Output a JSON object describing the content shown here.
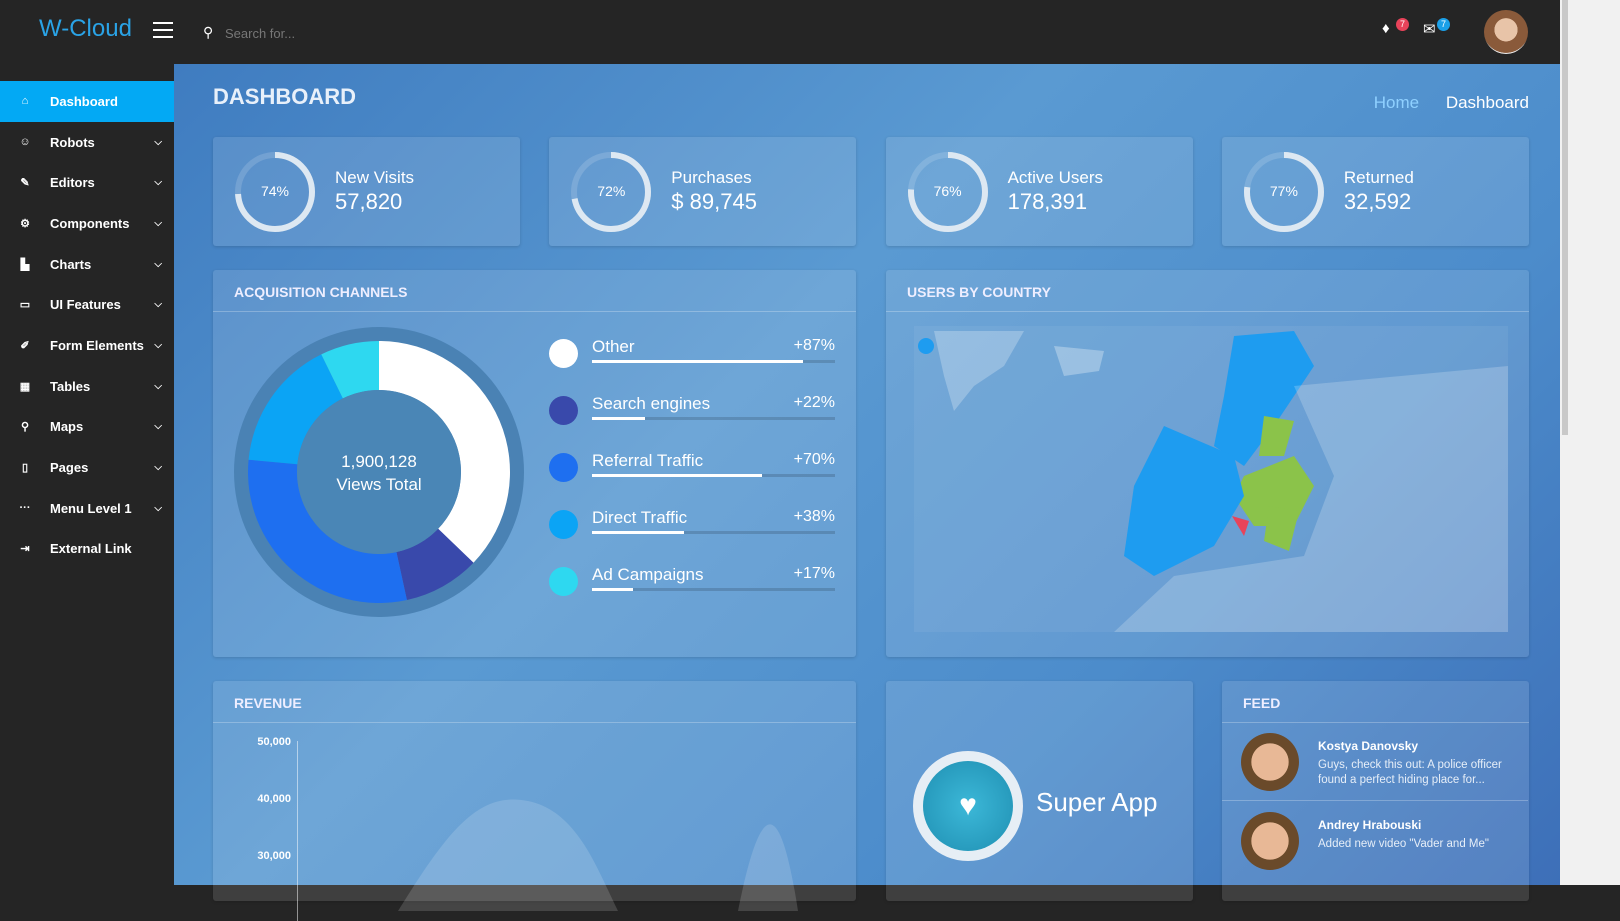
{
  "header": {
    "logo": "W-Cloud",
    "search_placeholder": "Search for...",
    "notifications_count": "7",
    "messages_count": "7"
  },
  "sidebar": {
    "items": [
      {
        "label": "Dashboard",
        "icon": "⌂"
      },
      {
        "label": "Robots",
        "icon": "☺"
      },
      {
        "label": "Editors",
        "icon": "✎"
      },
      {
        "label": "Components",
        "icon": "⚙"
      },
      {
        "label": "Charts",
        "icon": "▙"
      },
      {
        "label": "UI Features",
        "icon": "▭"
      },
      {
        "label": "Form Elements",
        "icon": "✐"
      },
      {
        "label": "Tables",
        "icon": "▦"
      },
      {
        "label": "Maps",
        "icon": "⚲"
      },
      {
        "label": "Pages",
        "icon": "▯"
      },
      {
        "label": "Menu Level 1",
        "icon": "···"
      },
      {
        "label": "External Link",
        "icon": "⇥"
      }
    ]
  },
  "page": {
    "title": "DASHBOARD",
    "breadcrumb_home": "Home",
    "breadcrumb_current": "Dashboard"
  },
  "stats": [
    {
      "label": "New Visits",
      "value": "57,820",
      "percent": 74,
      "pct_label": "74%"
    },
    {
      "label": "Purchases",
      "value": "$ 89,745",
      "percent": 72,
      "pct_label": "72%"
    },
    {
      "label": "Active Users",
      "value": "178,391",
      "percent": 76,
      "pct_label": "76%"
    },
    {
      "label": "Returned",
      "value": "32,592",
      "percent": 77,
      "pct_label": "77%"
    }
  ],
  "acquisition": {
    "title": "ACQUISITION CHANNELS",
    "total": "1,900,128",
    "total_label": "Views Total",
    "channels": [
      {
        "name": "Other",
        "pct": "+87%",
        "value": 87,
        "color": "#ffffff"
      },
      {
        "name": "Search engines",
        "pct": "+22%",
        "value": 22,
        "color": "#3949ab"
      },
      {
        "name": "Referral Traffic",
        "pct": "+70%",
        "value": 70,
        "color": "#1e6ff0"
      },
      {
        "name": "Direct Traffic",
        "pct": "+38%",
        "value": 38,
        "color": "#0ba4f5"
      },
      {
        "name": "Ad Campaigns",
        "pct": "+17%",
        "value": 17,
        "color": "#2ed8f0"
      }
    ]
  },
  "country": {
    "title": "USERS BY COUNTRY"
  },
  "revenue": {
    "title": "REVENUE"
  },
  "chart_data": {
    "type": "area",
    "title": "REVENUE",
    "yticks": [
      "50,000",
      "40,000",
      "30,000"
    ],
    "ylim": [
      30000,
      50000
    ]
  },
  "superapp": {
    "title": "Super App"
  },
  "feed": {
    "title": "FEED",
    "items": [
      {
        "name": "Kostya Danovsky",
        "text": "Guys, check this out: A police officer found a perfect hiding place for..."
      },
      {
        "name": "Andrey Hrabouski",
        "text": "Added new video \"Vader and Me\""
      }
    ]
  }
}
